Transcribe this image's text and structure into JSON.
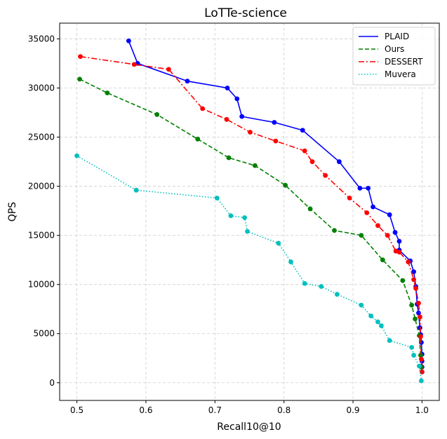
{
  "chart_data": {
    "type": "line",
    "title": "LoTTe-science",
    "xlabel": "Recall10@10",
    "ylabel": "QPS",
    "xlim": [
      0.475,
      1.025
    ],
    "ylim": [
      -1800,
      36600
    ],
    "xticks": [
      0.5,
      0.6,
      0.7,
      0.8,
      0.9,
      1.0
    ],
    "xtick_labels": [
      "0.5",
      "0.6",
      "0.7",
      "0.8",
      "0.9",
      "1.0"
    ],
    "yticks": [
      0,
      5000,
      10000,
      15000,
      20000,
      25000,
      30000,
      35000
    ],
    "ytick_labels": [
      "0",
      "5000",
      "10000",
      "15000",
      "20000",
      "25000",
      "30000",
      "35000"
    ],
    "grid": true,
    "legend_position": "top-right",
    "series": [
      {
        "name": "PLAID",
        "color": "#0000ff",
        "linestyle": "solid",
        "points": [
          [
            0.575,
            34800
          ],
          [
            0.588,
            32500
          ],
          [
            0.66,
            30700
          ],
          [
            0.718,
            30000
          ],
          [
            0.732,
            28900
          ],
          [
            0.739,
            27100
          ],
          [
            0.786,
            26500
          ],
          [
            0.827,
            25700
          ],
          [
            0.88,
            22500
          ],
          [
            0.91,
            19800
          ],
          [
            0.922,
            19800
          ],
          [
            0.929,
            17900
          ],
          [
            0.953,
            17100
          ],
          [
            0.961,
            15300
          ],
          [
            0.967,
            14400
          ],
          [
            0.967,
            13500
          ],
          [
            0.983,
            12400
          ],
          [
            0.988,
            11300
          ],
          [
            0.991,
            9800
          ],
          [
            0.993,
            8000
          ],
          [
            0.995,
            7100
          ],
          [
            0.997,
            5600
          ],
          [
            0.998,
            4900
          ],
          [
            0.999,
            4100
          ],
          [
            1.0,
            2900
          ],
          [
            1.0,
            2200
          ],
          [
            1.0,
            1600
          ],
          [
            1.0,
            1100
          ]
        ]
      },
      {
        "name": "Ours",
        "color": "#008000",
        "linestyle": "dashed",
        "points": [
          [
            0.504,
            30900
          ],
          [
            0.544,
            29500
          ],
          [
            0.616,
            27300
          ],
          [
            0.675,
            24800
          ],
          [
            0.72,
            22900
          ],
          [
            0.758,
            22100
          ],
          [
            0.802,
            20100
          ],
          [
            0.838,
            17700
          ],
          [
            0.873,
            15500
          ],
          [
            0.912,
            15000
          ],
          [
            0.943,
            12500
          ],
          [
            0.972,
            10400
          ],
          [
            0.985,
            7900
          ],
          [
            0.99,
            6500
          ],
          [
            0.996,
            4800
          ],
          [
            0.998,
            2800
          ],
          [
            0.999,
            1600
          ],
          [
            1.0,
            1100
          ]
        ]
      },
      {
        "name": "DESSERT",
        "color": "#ff0000",
        "linestyle": "dashdot",
        "points": [
          [
            0.505,
            33200
          ],
          [
            0.583,
            32400
          ],
          [
            0.633,
            31900
          ],
          [
            0.682,
            27900
          ],
          [
            0.717,
            26800
          ],
          [
            0.751,
            25500
          ],
          [
            0.788,
            24600
          ],
          [
            0.83,
            23600
          ],
          [
            0.841,
            22500
          ],
          [
            0.86,
            21100
          ],
          [
            0.895,
            18800
          ],
          [
            0.92,
            17300
          ],
          [
            0.936,
            16000
          ],
          [
            0.95,
            15000
          ],
          [
            0.962,
            13400
          ],
          [
            0.967,
            13300
          ],
          [
            0.98,
            12300
          ],
          [
            0.988,
            10500
          ],
          [
            0.991,
            9600
          ],
          [
            0.995,
            8100
          ],
          [
            0.997,
            6700
          ],
          [
            0.998,
            4700
          ],
          [
            0.999,
            2400
          ],
          [
            1.0,
            1100
          ]
        ]
      },
      {
        "name": "Muvera",
        "color": "#00bfbf",
        "linestyle": "dotted",
        "points": [
          [
            0.5,
            23100
          ],
          [
            0.586,
            19600
          ],
          [
            0.703,
            18800
          ],
          [
            0.723,
            17000
          ],
          [
            0.743,
            16800
          ],
          [
            0.747,
            15400
          ],
          [
            0.792,
            14200
          ],
          [
            0.81,
            12300
          ],
          [
            0.83,
            10100
          ],
          [
            0.854,
            9800
          ],
          [
            0.877,
            9000
          ],
          [
            0.912,
            7900
          ],
          [
            0.926,
            6800
          ],
          [
            0.936,
            6200
          ],
          [
            0.941,
            5800
          ],
          [
            0.953,
            4300
          ],
          [
            0.985,
            3600
          ],
          [
            0.988,
            2800
          ],
          [
            0.996,
            1700
          ],
          [
            0.999,
            200
          ]
        ]
      }
    ]
  }
}
